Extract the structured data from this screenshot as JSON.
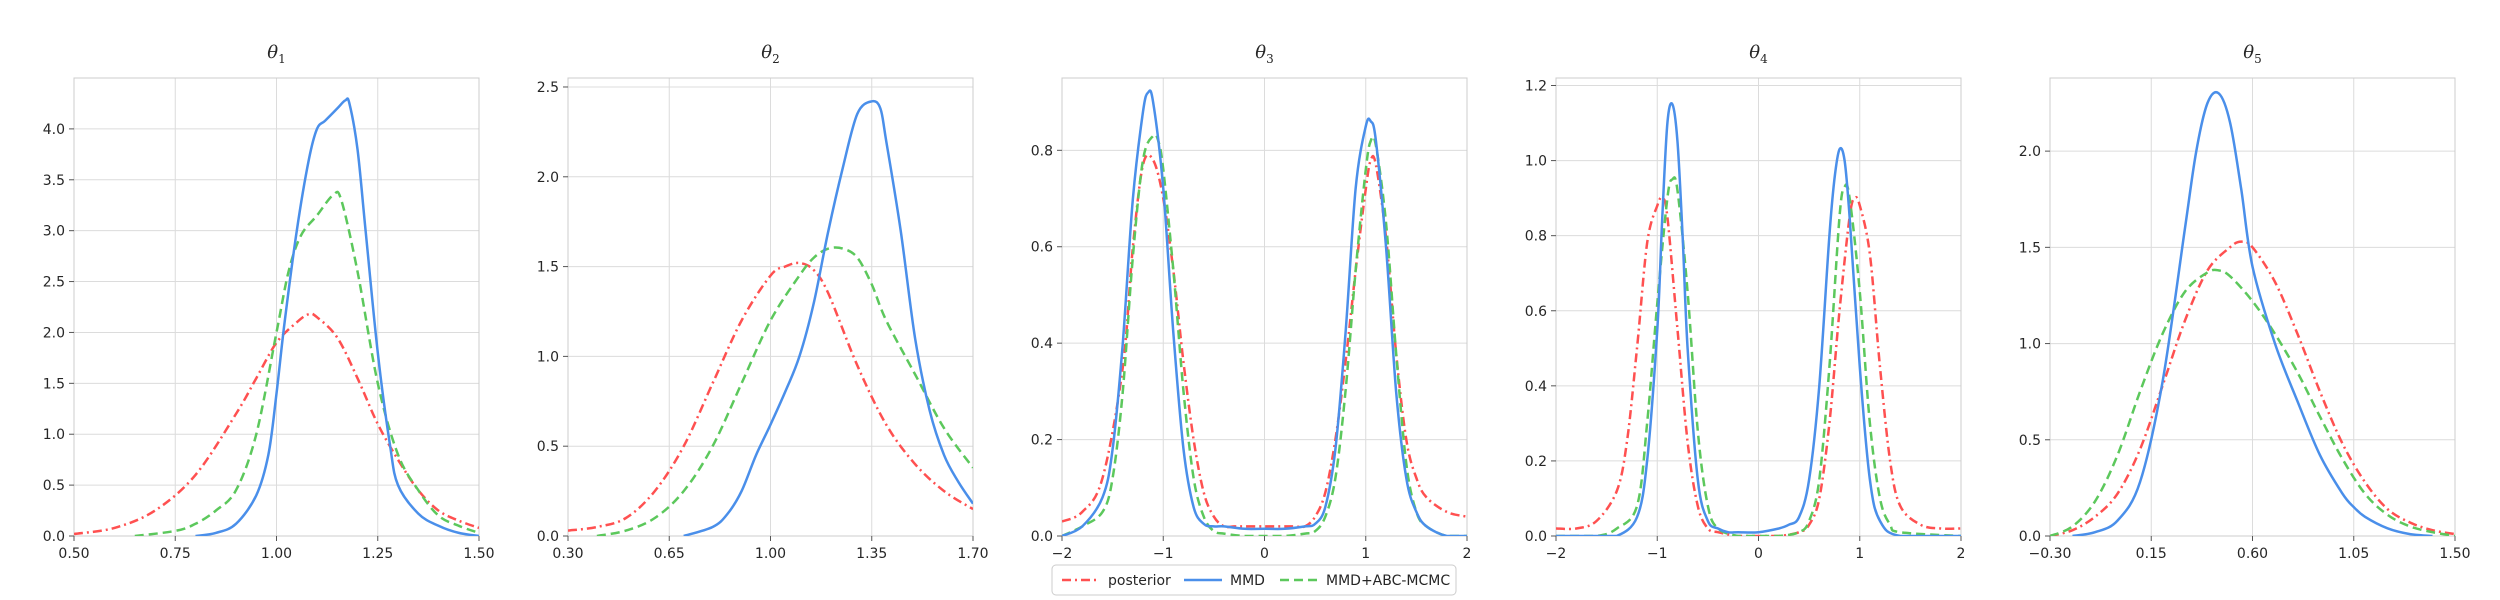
{
  "legend": {
    "entries": [
      {
        "label": "posterior",
        "color": "#ff5050",
        "dash": "dashdot"
      },
      {
        "label": "MMD",
        "color": "#4a8fea",
        "dash": "solid"
      },
      {
        "label": "MMD+ABC-MCMC",
        "color": "#5cc85c",
        "dash": "dashed"
      }
    ],
    "placement": "bottom-center"
  },
  "chart_data": [
    {
      "type": "line",
      "title": "θ",
      "title_sub": "1",
      "xlim": [
        0.5,
        1.5
      ],
      "ylim": [
        0,
        4.5
      ],
      "xticks": [
        0.5,
        0.75,
        1.0,
        1.25,
        1.5
      ],
      "xtick_labels": [
        "0.50",
        "0.75",
        "1.00",
        "1.25",
        "1.50"
      ],
      "yticks": [
        0,
        0.5,
        1.0,
        1.5,
        2.0,
        2.5,
        3.0,
        3.5,
        4.0
      ],
      "ytick_labels": [
        "0.0",
        "0.5",
        "1.0",
        "1.5",
        "2.0",
        "2.5",
        "3.0",
        "3.5",
        "4.0"
      ],
      "grid": true,
      "series": [
        {
          "name": "posterior",
          "x": [
            0.5,
            0.6,
            0.7,
            0.8,
            0.9,
            0.95,
            1.0,
            1.05,
            1.08,
            1.1,
            1.15,
            1.2,
            1.25,
            1.3,
            1.35,
            1.4,
            1.45,
            1.5
          ],
          "y": [
            0.02,
            0.08,
            0.25,
            0.6,
            1.2,
            1.55,
            1.9,
            2.1,
            2.18,
            2.15,
            1.95,
            1.55,
            1.1,
            0.75,
            0.45,
            0.25,
            0.15,
            0.08
          ]
        },
        {
          "name": "MMD",
          "x": [
            0.8,
            0.85,
            0.9,
            0.95,
            0.98,
            1.0,
            1.02,
            1.05,
            1.08,
            1.1,
            1.12,
            1.15,
            1.17,
            1.18,
            1.2,
            1.22,
            1.25,
            1.28,
            1.3,
            1.35,
            1.4,
            1.45,
            1.5
          ],
          "y": [
            0,
            0.03,
            0.12,
            0.4,
            0.8,
            1.4,
            2.1,
            3.0,
            3.7,
            4.0,
            4.08,
            4.2,
            4.28,
            4.25,
            3.8,
            3.0,
            1.8,
            0.9,
            0.5,
            0.22,
            0.1,
            0.03,
            0.0
          ]
        },
        {
          "name": "MMD+ABC-MCMC",
          "x": [
            0.65,
            0.75,
            0.8,
            0.85,
            0.9,
            0.95,
            1.0,
            1.03,
            1.06,
            1.1,
            1.14,
            1.16,
            1.2,
            1.25,
            1.3,
            1.35,
            1.4,
            1.45,
            1.5
          ],
          "y": [
            0.0,
            0.05,
            0.12,
            0.25,
            0.45,
            1.0,
            2.0,
            2.6,
            2.95,
            3.15,
            3.35,
            3.3,
            2.6,
            1.5,
            0.8,
            0.45,
            0.2,
            0.1,
            0.03
          ]
        }
      ]
    },
    {
      "type": "line",
      "title": "θ",
      "title_sub": "2",
      "xlim": [
        0.3,
        1.7
      ],
      "ylim": [
        0,
        2.55
      ],
      "xticks": [
        0.3,
        0.65,
        1.0,
        1.35,
        1.7
      ],
      "xtick_labels": [
        "0.30",
        "0.65",
        "1.00",
        "1.35",
        "1.70"
      ],
      "yticks": [
        0,
        0.5,
        1.0,
        1.5,
        2.0,
        2.5
      ],
      "ytick_labels": [
        "0.0",
        "0.5",
        "1.0",
        "1.5",
        "2.0",
        "2.5"
      ],
      "grid": true,
      "series": [
        {
          "name": "posterior",
          "x": [
            0.3,
            0.4,
            0.5,
            0.6,
            0.7,
            0.8,
            0.9,
            1.0,
            1.05,
            1.1,
            1.15,
            1.2,
            1.3,
            1.4,
            1.5,
            1.6,
            1.7
          ],
          "y": [
            0.03,
            0.05,
            0.1,
            0.25,
            0.5,
            0.85,
            1.2,
            1.45,
            1.5,
            1.52,
            1.48,
            1.35,
            0.95,
            0.62,
            0.4,
            0.25,
            0.15
          ]
        },
        {
          "name": "MMD",
          "x": [
            0.7,
            0.8,
            0.85,
            0.9,
            0.95,
            1.0,
            1.05,
            1.1,
            1.15,
            1.2,
            1.25,
            1.3,
            1.35,
            1.38,
            1.4,
            1.45,
            1.5,
            1.55,
            1.6,
            1.65,
            1.7
          ],
          "y": [
            0.0,
            0.05,
            0.12,
            0.25,
            0.45,
            0.62,
            0.8,
            1.0,
            1.3,
            1.7,
            2.05,
            2.35,
            2.42,
            2.38,
            2.2,
            1.7,
            1.1,
            0.7,
            0.45,
            0.3,
            0.18
          ]
        },
        {
          "name": "MMD+ABC-MCMC",
          "x": [
            0.4,
            0.5,
            0.6,
            0.7,
            0.8,
            0.9,
            1.0,
            1.1,
            1.15,
            1.2,
            1.25,
            1.3,
            1.35,
            1.4,
            1.5,
            1.6,
            1.7
          ],
          "y": [
            0.0,
            0.03,
            0.1,
            0.25,
            0.5,
            0.85,
            1.2,
            1.45,
            1.55,
            1.6,
            1.6,
            1.55,
            1.4,
            1.2,
            0.9,
            0.6,
            0.38
          ]
        }
      ]
    },
    {
      "type": "line",
      "title": "θ",
      "title_sub": "3",
      "xlim": [
        -2,
        2
      ],
      "ylim": [
        0,
        0.95
      ],
      "xticks": [
        -2,
        -1,
        0,
        1,
        2
      ],
      "xtick_labels": [
        "−2",
        "−1",
        "0",
        "1",
        "2"
      ],
      "yticks": [
        0,
        0.2,
        0.4,
        0.6,
        0.8
      ],
      "ytick_labels": [
        "0.0",
        "0.2",
        "0.4",
        "0.6",
        "0.8"
      ],
      "grid": true,
      "series": [
        {
          "name": "posterior",
          "x": [
            -2.0,
            -1.8,
            -1.6,
            -1.4,
            -1.3,
            -1.2,
            -1.1,
            -1.0,
            -0.9,
            -0.8,
            -0.7,
            -0.6,
            -0.5,
            -0.4,
            -0.3,
            -0.2,
            0.0,
            0.2,
            0.3,
            0.4,
            0.5,
            0.6,
            0.7,
            0.8,
            0.9,
            1.0,
            1.05,
            1.1,
            1.2,
            1.3,
            1.4,
            1.5,
            1.6,
            1.8,
            2.0
          ],
          "y": [
            0.03,
            0.05,
            0.12,
            0.35,
            0.6,
            0.77,
            0.78,
            0.7,
            0.55,
            0.36,
            0.2,
            0.09,
            0.04,
            0.02,
            0.02,
            0.02,
            0.02,
            0.02,
            0.02,
            0.02,
            0.04,
            0.09,
            0.2,
            0.36,
            0.55,
            0.72,
            0.78,
            0.77,
            0.62,
            0.38,
            0.2,
            0.12,
            0.08,
            0.05,
            0.04
          ]
        },
        {
          "name": "MMD",
          "x": [
            -2.0,
            -1.8,
            -1.6,
            -1.5,
            -1.4,
            -1.3,
            -1.2,
            -1.15,
            -1.1,
            -1.0,
            -0.9,
            -0.8,
            -0.7,
            -0.6,
            -0.5,
            -0.4,
            -0.2,
            0.0,
            0.2,
            0.4,
            0.5,
            0.6,
            0.7,
            0.8,
            0.9,
            1.0,
            1.05,
            1.1,
            1.2,
            1.3,
            1.4,
            1.5,
            1.6,
            1.8,
            2.0
          ],
          "y": [
            0.0,
            0.02,
            0.08,
            0.18,
            0.4,
            0.7,
            0.88,
            0.92,
            0.9,
            0.72,
            0.42,
            0.18,
            0.06,
            0.025,
            0.02,
            0.02,
            0.015,
            0.015,
            0.015,
            0.02,
            0.025,
            0.06,
            0.18,
            0.42,
            0.72,
            0.85,
            0.86,
            0.82,
            0.6,
            0.3,
            0.12,
            0.05,
            0.02,
            0.0,
            0.0
          ]
        },
        {
          "name": "MMD+ABC-MCMC",
          "x": [
            -2.0,
            -1.8,
            -1.6,
            -1.5,
            -1.4,
            -1.3,
            -1.2,
            -1.1,
            -1.05,
            -1.0,
            -0.9,
            -0.8,
            -0.7,
            -0.6,
            -0.5,
            -0.4,
            -0.2,
            0.0,
            0.2,
            0.4,
            0.5,
            0.6,
            0.7,
            0.8,
            0.9,
            1.0,
            1.05,
            1.1,
            1.2,
            1.3,
            1.4,
            1.5,
            1.6,
            1.8,
            2.0
          ],
          "y": [
            0.0,
            0.02,
            0.05,
            0.12,
            0.3,
            0.58,
            0.78,
            0.83,
            0.82,
            0.76,
            0.55,
            0.3,
            0.12,
            0.04,
            0.01,
            0.005,
            0.0,
            0.0,
            0.0,
            0.005,
            0.01,
            0.04,
            0.12,
            0.3,
            0.55,
            0.76,
            0.82,
            0.81,
            0.65,
            0.38,
            0.15,
            0.05,
            0.02,
            0.0,
            0.0
          ]
        }
      ]
    },
    {
      "type": "line",
      "title": "θ",
      "title_sub": "4",
      "xlim": [
        -2,
        2
      ],
      "ylim": [
        0,
        1.22
      ],
      "xticks": [
        -2,
        -1,
        0,
        1,
        2
      ],
      "xtick_labels": [
        "−2",
        "−1",
        "0",
        "1",
        "2"
      ],
      "yticks": [
        0,
        0.2,
        0.4,
        0.6,
        0.8,
        1.0,
        1.2
      ],
      "ytick_labels": [
        "0.0",
        "0.2",
        "0.4",
        "0.6",
        "0.8",
        "1.0",
        "1.2"
      ],
      "grid": true,
      "series": [
        {
          "name": "posterior",
          "x": [
            -2.0,
            -1.8,
            -1.6,
            -1.4,
            -1.3,
            -1.2,
            -1.1,
            -1.0,
            -0.95,
            -0.9,
            -0.8,
            -0.7,
            -0.6,
            -0.5,
            -0.4,
            -0.2,
            0.0,
            0.2,
            0.4,
            0.5,
            0.6,
            0.7,
            0.8,
            0.9,
            0.95,
            1.0,
            1.1,
            1.2,
            1.3,
            1.4,
            1.6,
            1.8,
            2.0
          ],
          "y": [
            0.02,
            0.02,
            0.04,
            0.12,
            0.25,
            0.5,
            0.78,
            0.88,
            0.9,
            0.85,
            0.55,
            0.25,
            0.08,
            0.02,
            0.01,
            0.0,
            0.0,
            0.0,
            0.01,
            0.03,
            0.1,
            0.3,
            0.6,
            0.85,
            0.9,
            0.88,
            0.75,
            0.45,
            0.2,
            0.08,
            0.03,
            0.02,
            0.02
          ]
        },
        {
          "name": "MMD",
          "x": [
            -2.0,
            -1.6,
            -1.4,
            -1.2,
            -1.1,
            -1.0,
            -0.95,
            -0.9,
            -0.85,
            -0.8,
            -0.75,
            -0.7,
            -0.6,
            -0.5,
            -0.4,
            -0.3,
            -0.2,
            0.0,
            0.2,
            0.3,
            0.4,
            0.5,
            0.6,
            0.7,
            0.75,
            0.8,
            0.85,
            0.9,
            1.0,
            1.1,
            1.2,
            1.4,
            2.0
          ],
          "y": [
            0.0,
            0.0,
            0.0,
            0.05,
            0.2,
            0.55,
            0.85,
            1.1,
            1.15,
            1.05,
            0.8,
            0.5,
            0.15,
            0.04,
            0.02,
            0.01,
            0.01,
            0.01,
            0.02,
            0.03,
            0.05,
            0.15,
            0.4,
            0.8,
            0.95,
            1.03,
            1.0,
            0.85,
            0.45,
            0.15,
            0.04,
            0.0,
            0.0
          ]
        },
        {
          "name": "MMD+ABC-MCMC",
          "x": [
            -2.0,
            -1.6,
            -1.4,
            -1.2,
            -1.1,
            -1.0,
            -0.9,
            -0.85,
            -0.8,
            -0.7,
            -0.6,
            -0.5,
            -0.4,
            -0.2,
            0.0,
            0.2,
            0.4,
            0.5,
            0.6,
            0.7,
            0.8,
            0.85,
            0.9,
            1.0,
            1.1,
            1.2,
            1.3,
            1.4,
            2.0
          ],
          "y": [
            0.0,
            0.0,
            0.02,
            0.08,
            0.3,
            0.62,
            0.9,
            0.95,
            0.92,
            0.65,
            0.28,
            0.08,
            0.02,
            0.0,
            0.0,
            0.0,
            0.01,
            0.04,
            0.15,
            0.45,
            0.85,
            0.93,
            0.9,
            0.65,
            0.3,
            0.1,
            0.03,
            0.01,
            0.0
          ]
        }
      ]
    },
    {
      "type": "line",
      "title": "θ",
      "title_sub": "5",
      "xlim": [
        -0.3,
        1.5
      ],
      "ylim": [
        0,
        2.38
      ],
      "xticks": [
        -0.3,
        0.15,
        0.6,
        1.05,
        1.5
      ],
      "xtick_labels": [
        "−0.30",
        "0.15",
        "0.60",
        "1.05",
        "1.50"
      ],
      "yticks": [
        0,
        0.5,
        1.0,
        1.5,
        2.0
      ],
      "ytick_labels": [
        "0.0",
        "0.5",
        "1.0",
        "1.5",
        "2.0"
      ],
      "grid": true,
      "series": [
        {
          "name": "posterior",
          "x": [
            -0.3,
            -0.2,
            -0.1,
            0.0,
            0.1,
            0.2,
            0.3,
            0.4,
            0.5,
            0.55,
            0.6,
            0.7,
            0.8,
            0.9,
            1.0,
            1.1,
            1.2,
            1.3,
            1.4,
            1.5
          ],
          "y": [
            0.0,
            0.03,
            0.1,
            0.22,
            0.45,
            0.78,
            1.12,
            1.38,
            1.5,
            1.53,
            1.5,
            1.32,
            1.05,
            0.75,
            0.48,
            0.28,
            0.14,
            0.07,
            0.03,
            0.01
          ]
        },
        {
          "name": "MMD",
          "x": [
            -0.2,
            -0.1,
            0.0,
            0.1,
            0.2,
            0.3,
            0.35,
            0.4,
            0.45,
            0.5,
            0.55,
            0.6,
            0.7,
            0.8,
            0.9,
            1.0,
            1.05,
            1.1,
            1.2,
            1.3,
            1.4
          ],
          "y": [
            0.0,
            0.02,
            0.08,
            0.28,
            0.8,
            1.6,
            2.0,
            2.25,
            2.3,
            2.15,
            1.8,
            1.4,
            1.0,
            0.7,
            0.42,
            0.22,
            0.15,
            0.1,
            0.04,
            0.01,
            0.0
          ]
        },
        {
          "name": "MMD+ABC-MCMC",
          "x": [
            -0.3,
            -0.2,
            -0.1,
            0.0,
            0.1,
            0.2,
            0.3,
            0.4,
            0.45,
            0.5,
            0.6,
            0.7,
            0.8,
            0.9,
            1.0,
            1.1,
            1.2,
            1.3,
            1.4,
            1.5
          ],
          "y": [
            0.0,
            0.05,
            0.18,
            0.42,
            0.75,
            1.05,
            1.27,
            1.37,
            1.38,
            1.35,
            1.22,
            1.05,
            0.85,
            0.62,
            0.4,
            0.22,
            0.11,
            0.05,
            0.02,
            0.0
          ]
        }
      ]
    }
  ]
}
